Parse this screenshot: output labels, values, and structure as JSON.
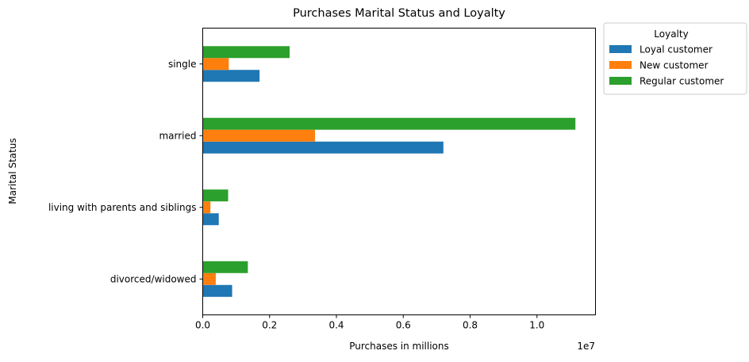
{
  "chart_data": {
    "type": "bar",
    "orientation": "horizontal",
    "title": "Purchases Marital Status and Loyalty",
    "xlabel": "Purchases in millions",
    "ylabel": "Marital Status",
    "x_offset_label": "1e7",
    "xlim": [
      0,
      11750000
    ],
    "x_ticks": [
      0,
      2000000,
      4000000,
      6000000,
      8000000,
      10000000
    ],
    "x_tick_labels": [
      "0.0",
      "0.2",
      "0.4",
      "0.6",
      "0.8",
      "1.0"
    ],
    "categories": [
      "divorced/widowed",
      "living with parents and siblings",
      "married",
      "single"
    ],
    "series": [
      {
        "name": "Loyal customer",
        "color": "#1f77b4",
        "values": [
          880000,
          480000,
          7200000,
          1700000
        ]
      },
      {
        "name": "New customer",
        "color": "#ff7f0e",
        "values": [
          390000,
          230000,
          3360000,
          780000
        ]
      },
      {
        "name": "Regular customer",
        "color": "#2ca02c",
        "values": [
          1350000,
          760000,
          11150000,
          2600000
        ]
      }
    ],
    "legend": {
      "title": "Loyalty",
      "placement": "outside-top-right"
    },
    "grid": false
  }
}
